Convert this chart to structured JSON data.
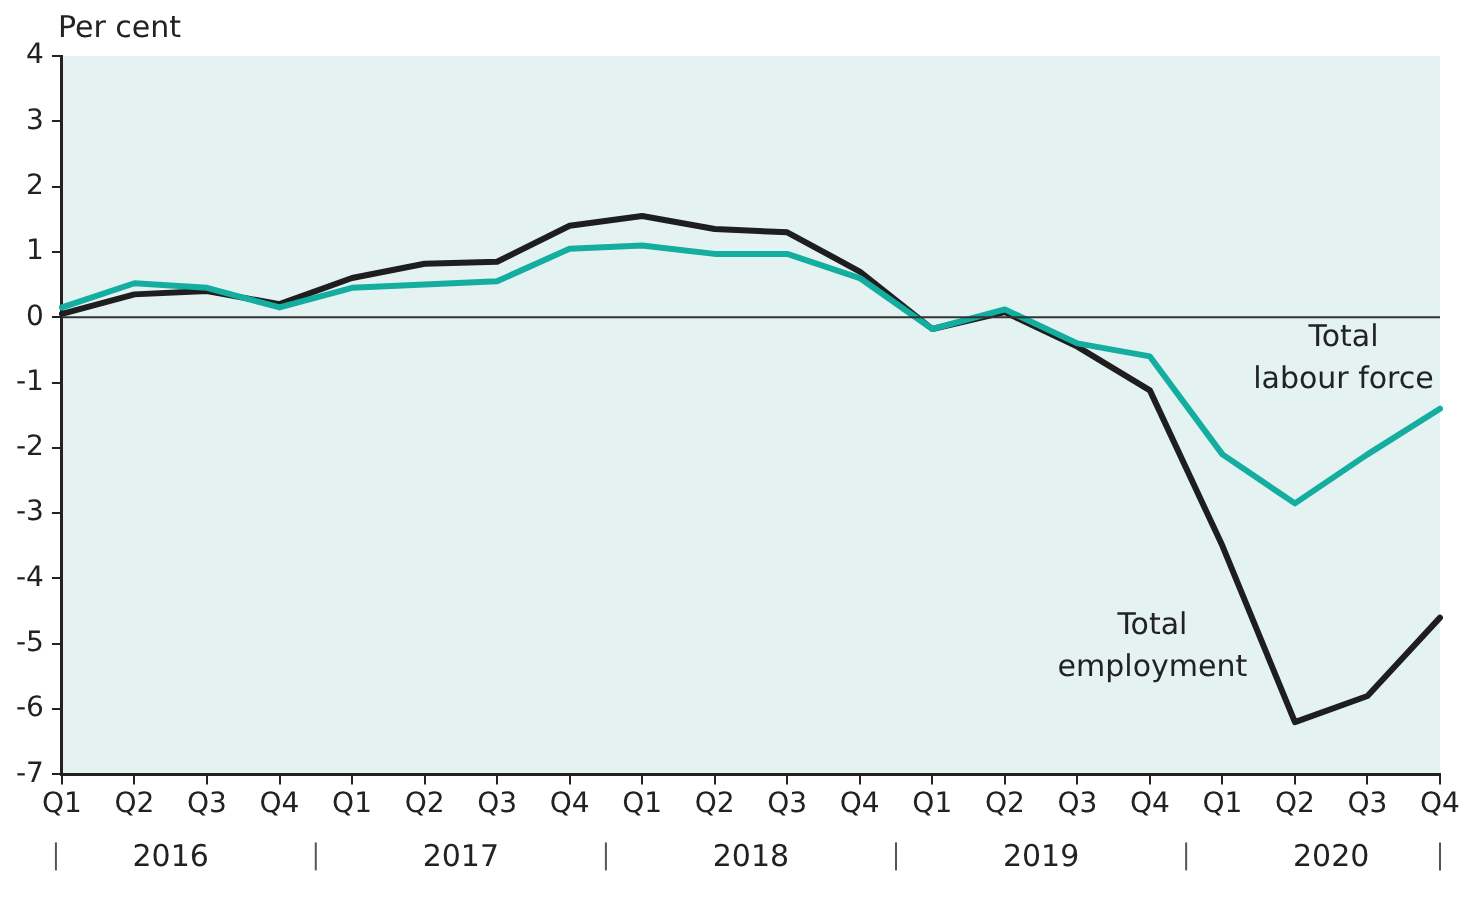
{
  "chart_data": {
    "type": "line",
    "ylabel": "Per cent",
    "categories": [
      "Q1",
      "Q2",
      "Q3",
      "Q4",
      "Q1",
      "Q2",
      "Q3",
      "Q4",
      "Q1",
      "Q2",
      "Q3",
      "Q4",
      "Q1",
      "Q2",
      "Q3",
      "Q4",
      "Q1",
      "Q2",
      "Q3",
      "Q4"
    ],
    "annotations": [
      "2016",
      "2017",
      "2018",
      "2019",
      "2020"
    ],
    "series": [
      {
        "name": "Total labour force",
        "color": "#13aea0",
        "values": [
          0.15,
          0.52,
          0.45,
          0.15,
          0.45,
          0.5,
          0.55,
          1.05,
          1.1,
          0.97,
          0.97,
          0.6,
          -0.18,
          0.12,
          -0.4,
          -0.6,
          -2.1,
          -2.85,
          -2.1,
          -1.4
        ]
      },
      {
        "name": "Total employment",
        "color": "#1e1e1e",
        "values": [
          0.05,
          0.35,
          0.4,
          0.2,
          0.6,
          0.82,
          0.85,
          1.4,
          1.55,
          1.35,
          1.3,
          0.7,
          -0.18,
          0.08,
          -0.45,
          -1.12,
          -3.5,
          -6.2,
          -5.8,
          -4.6
        ]
      }
    ],
    "ylim": [
      -7,
      4
    ],
    "yticks": [
      -7,
      -6,
      -5,
      -4,
      -3,
      -2,
      -1,
      0,
      1,
      2,
      3,
      4
    ],
    "ref_lines": [
      {
        "axis": "y",
        "value": 0,
        "color": "#333333"
      }
    ],
    "grid": false,
    "legend": false,
    "marker": "none",
    "line_style": "solid"
  }
}
